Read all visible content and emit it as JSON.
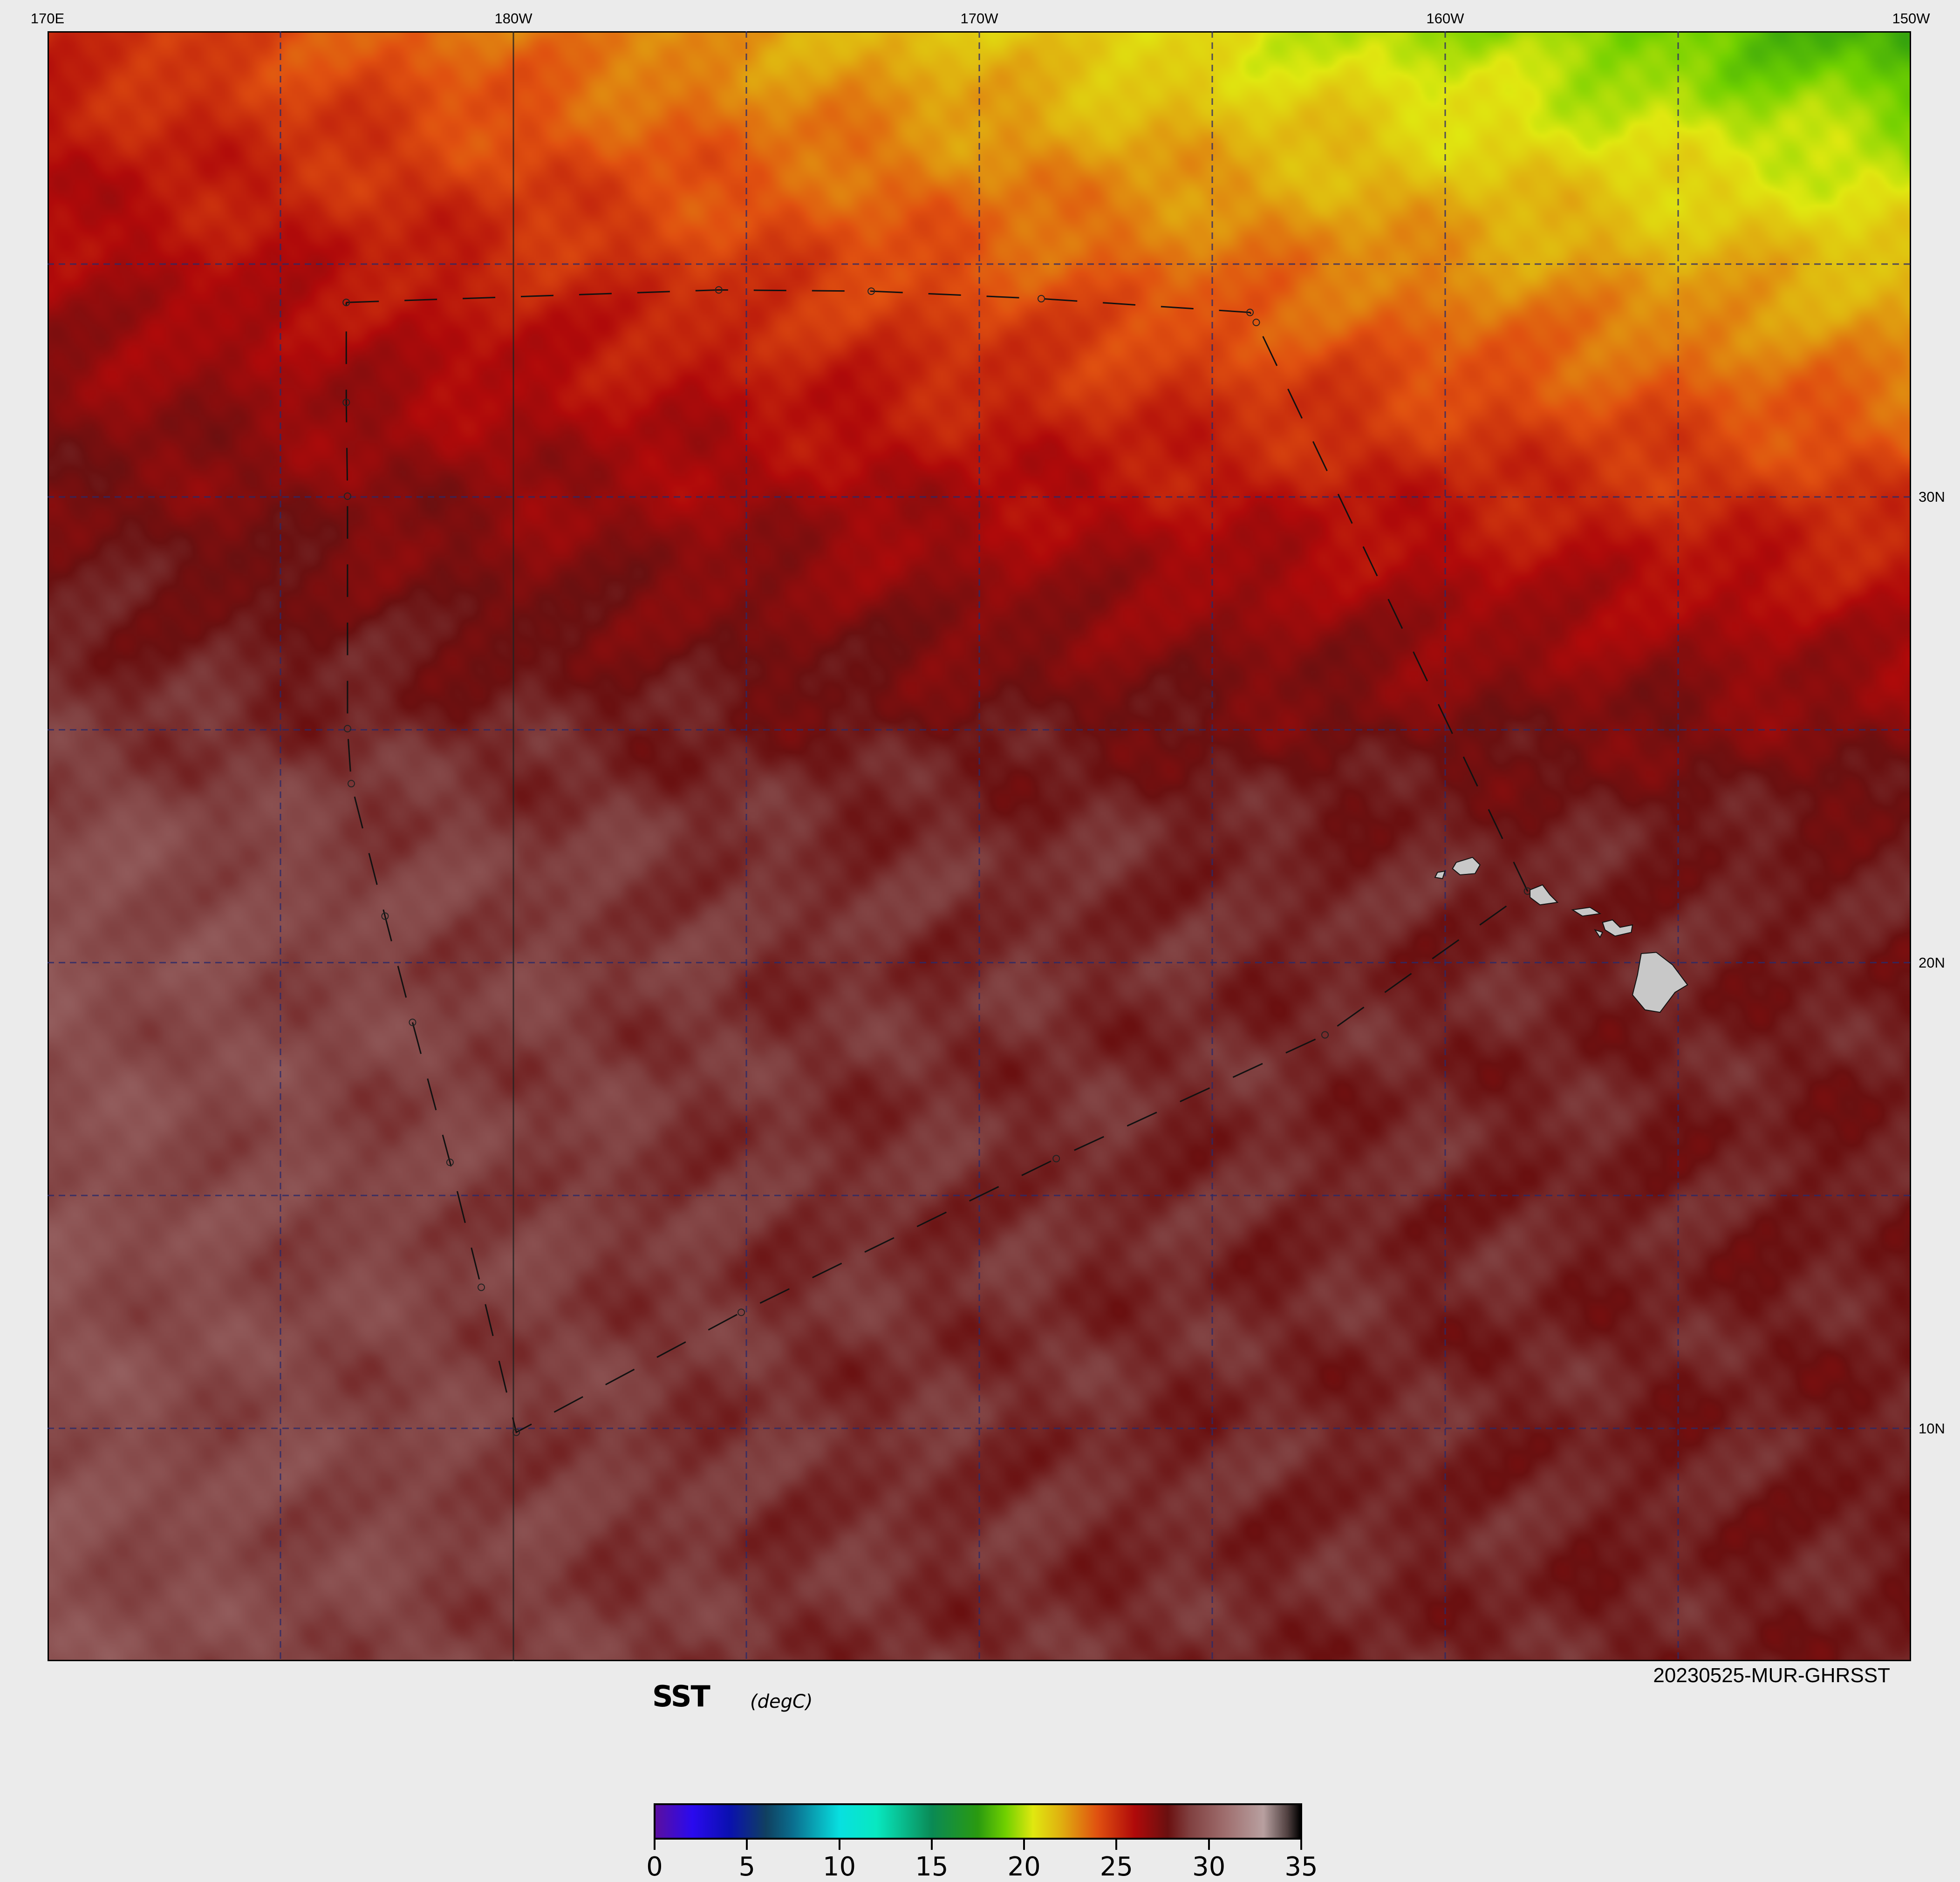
{
  "map": {
    "lon_labels": [
      "170E",
      "180W",
      "170W",
      "160W",
      "150W"
    ],
    "lat_labels": [
      "30N",
      "20N",
      "10N"
    ],
    "extent": {
      "lon_min": 170,
      "lon_max": 210,
      "lat_min": 5,
      "lat_max": 40
    },
    "graticule_interval_deg": 5,
    "land_color": "#c8c8c8",
    "source_label": "20230525-MUR-GHRSST"
  },
  "colorbar": {
    "title": "SST",
    "units": "(degC)",
    "range": [
      0,
      35
    ],
    "tick_labels": [
      "0",
      "5",
      "10",
      "15",
      "20",
      "25",
      "30",
      "35"
    ]
  }
}
